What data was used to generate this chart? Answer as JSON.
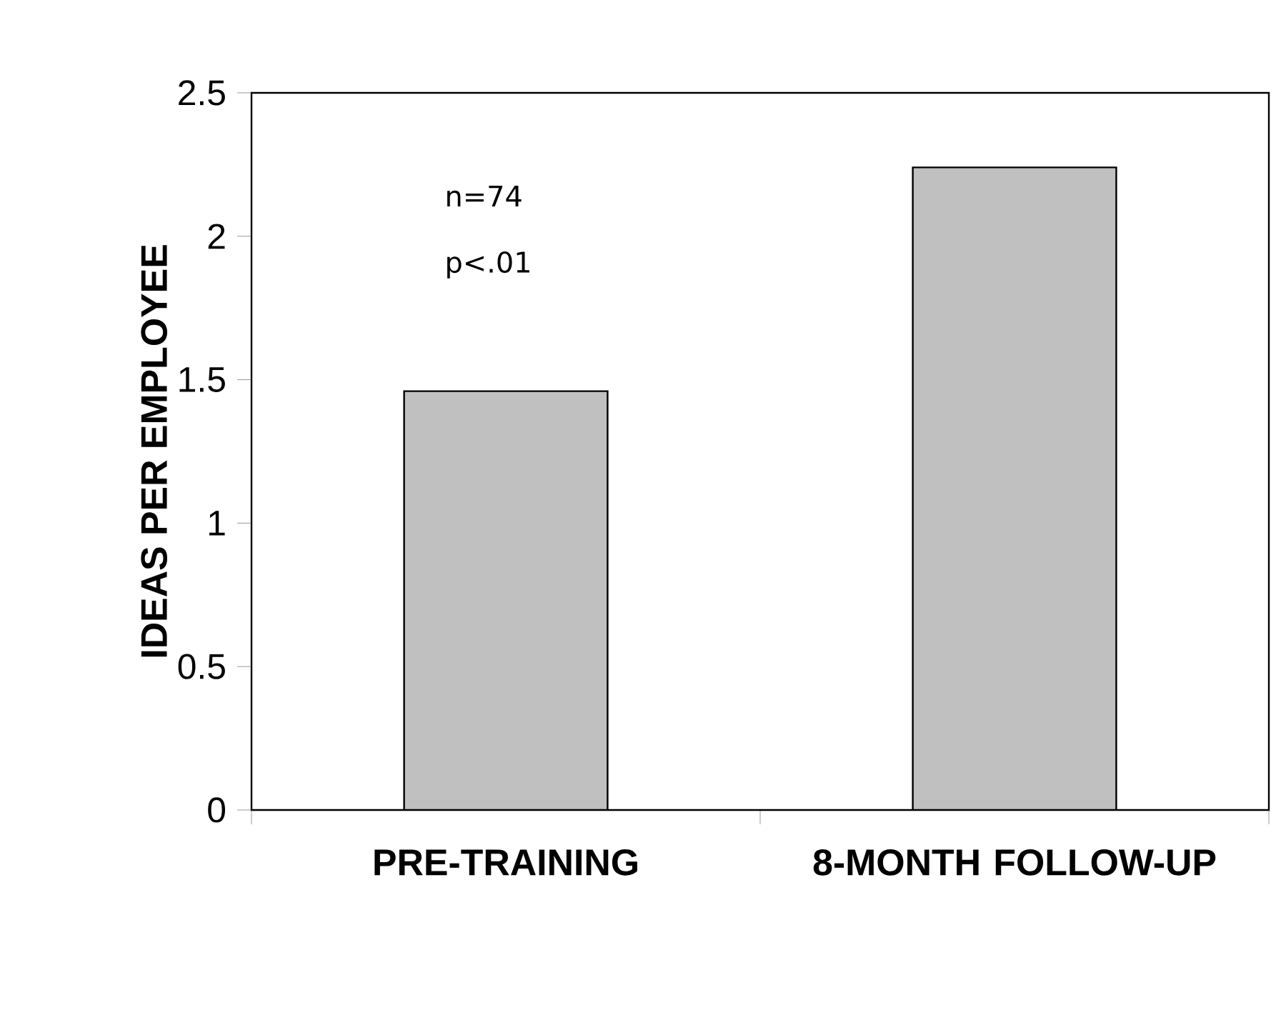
{
  "chart_data": {
    "type": "bar",
    "ylabel": "IDEAS PER EMPLOYEE",
    "categories": [
      "PRE-TRAINING",
      "8-MONTH FOLLOW-UP"
    ],
    "values": [
      1.46,
      2.24
    ],
    "color": "#c0c0c0",
    "ylim": [
      0,
      2.5
    ],
    "yticks": [
      0,
      0.5,
      1,
      1.5,
      2,
      2.5
    ],
    "grid": false,
    "annotations": [
      "n=74",
      "p<.01"
    ]
  }
}
